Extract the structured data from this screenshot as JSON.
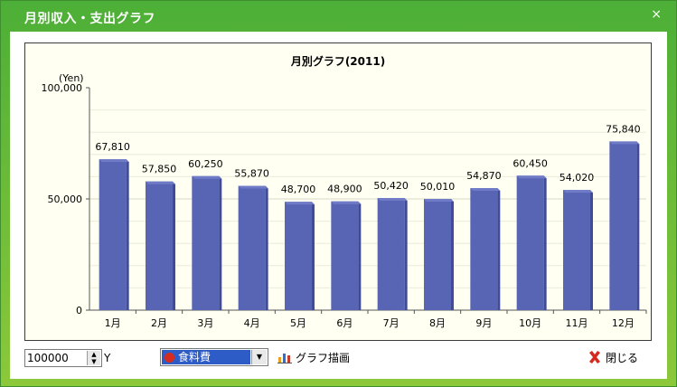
{
  "window": {
    "title": "月別収入・支出グラフ",
    "close_glyph": "×"
  },
  "chart_data": {
    "type": "bar",
    "title": "月別グラフ(2011)",
    "ylabel": "(Yen)",
    "categories": [
      "1月",
      "2月",
      "3月",
      "4月",
      "5月",
      "6月",
      "7月",
      "8月",
      "9月",
      "10月",
      "11月",
      "12月"
    ],
    "values": [
      67810,
      57850,
      60250,
      55870,
      48700,
      48900,
      50420,
      50010,
      54870,
      60450,
      54020,
      75840
    ],
    "value_labels": [
      "67,810",
      "57,850",
      "60,250",
      "55,870",
      "48,700",
      "48,900",
      "50,420",
      "50,010",
      "54,870",
      "60,450",
      "54,020",
      "75,840"
    ],
    "yticks": [
      0,
      50000,
      100000
    ],
    "ytick_labels": [
      "0",
      "50,000",
      "100,000"
    ],
    "ylim": [
      0,
      100000
    ],
    "bar_color": "#5865b4",
    "grid": true
  },
  "controls": {
    "max_value": "100000",
    "unit": "Y",
    "category_select": "食料費",
    "draw_button_label": "グラフ描画",
    "close_button_label": "閉じる"
  },
  "icons": {
    "spin": "spinner-icon",
    "category": "tomato-icon",
    "draw": "bar-chart-icon",
    "close": "close-x-icon"
  }
}
